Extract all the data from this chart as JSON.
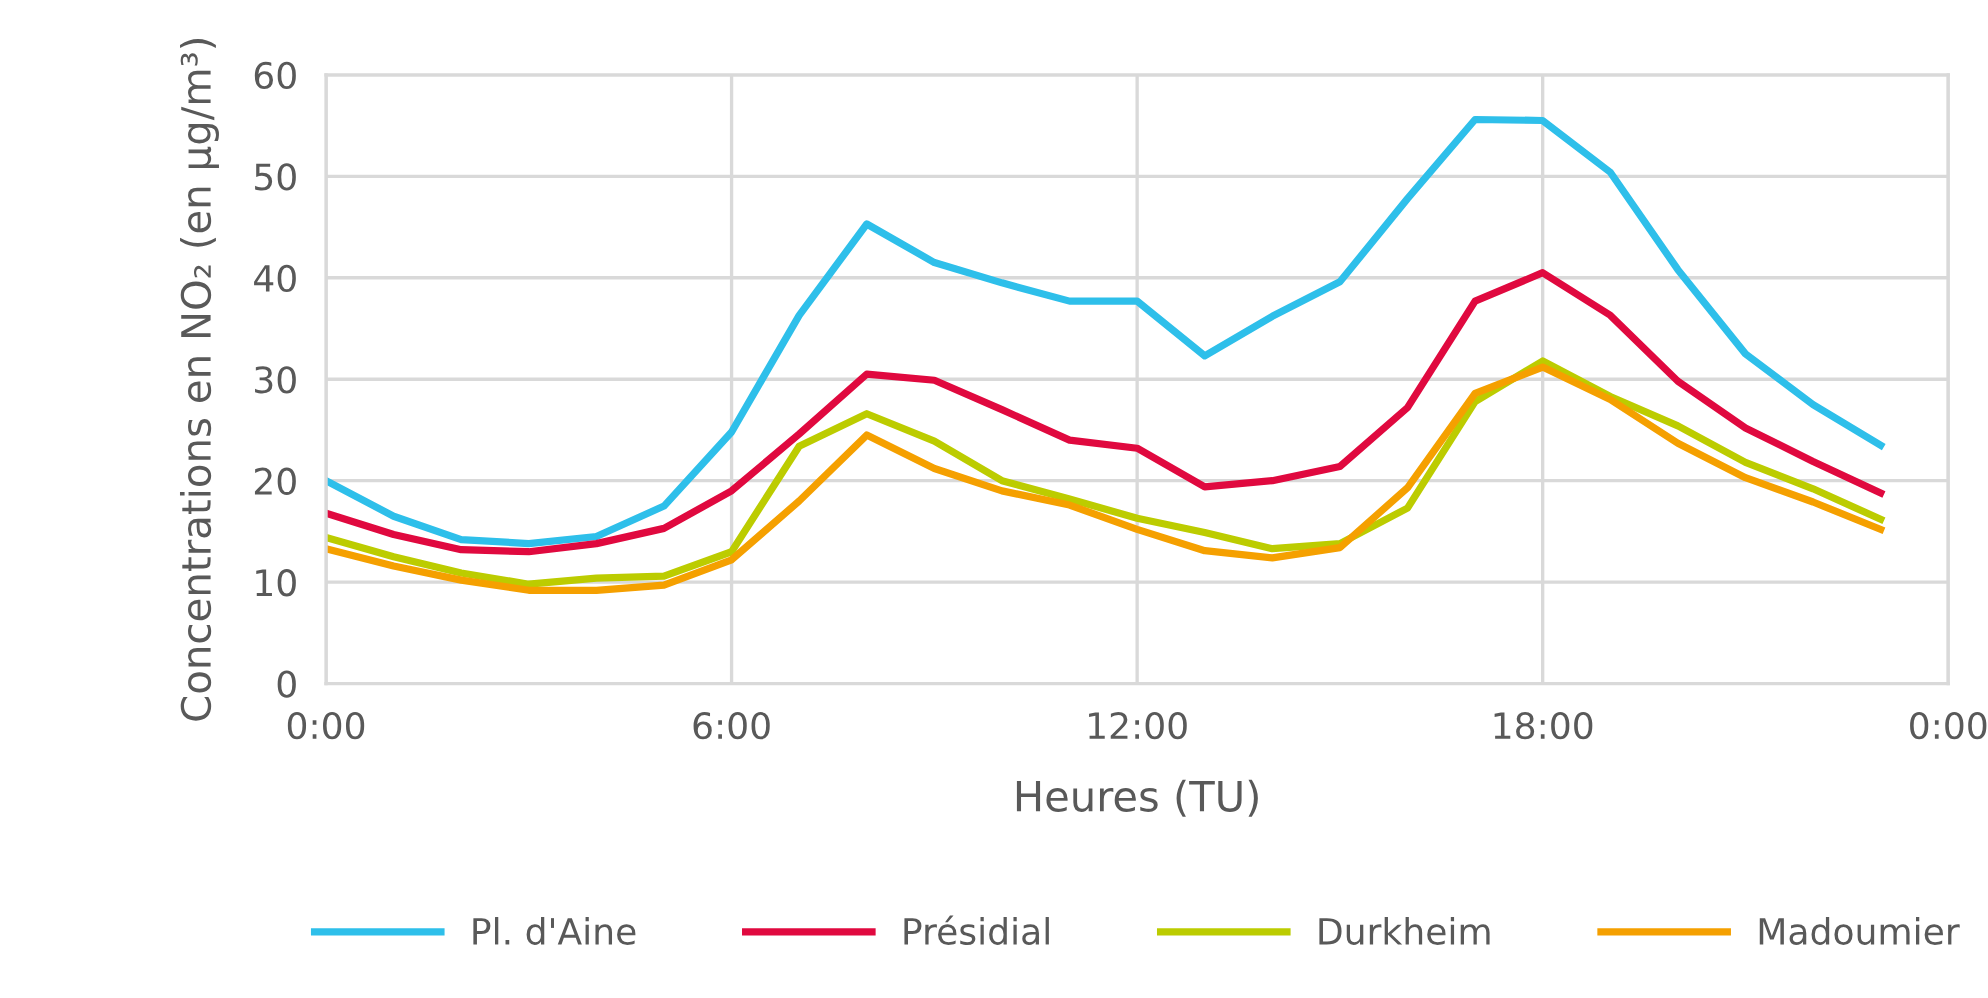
{
  "chart_data": {
    "type": "line",
    "xlabel": "Heures (TU)",
    "ylabel": "Concentrations en NO₂ (en µg/m³)",
    "x": [
      0,
      1,
      2,
      3,
      4,
      5,
      6,
      7,
      8,
      9,
      10,
      11,
      12,
      13,
      14,
      15,
      16,
      17,
      18,
      19,
      20,
      21,
      22,
      23
    ],
    "series": [
      {
        "name": "Pl. d'Aine",
        "color": "#2ebfea",
        "values": [
          20,
          16.5,
          14.2,
          13.8,
          14.5,
          17.5,
          24.8,
          36.3,
          45.3,
          41.5,
          39.5,
          37.7,
          37.7,
          32.3,
          36.2,
          39.6,
          47.8,
          55.6,
          55.5,
          50.4,
          40.8,
          32.5,
          27.5,
          23.5
        ]
      },
      {
        "name": "Présidial",
        "color": "#e0093f",
        "values": [
          16.8,
          14.7,
          13.2,
          13,
          13.8,
          15.3,
          19,
          24.6,
          30.5,
          29.9,
          27,
          24,
          23.2,
          19.4,
          20,
          21.4,
          27.2,
          37.7,
          40.5,
          36.3,
          29.8,
          25.2,
          21.9,
          18.8
        ]
      },
      {
        "name": "Durkheim",
        "color": "#bccc00",
        "values": [
          14.4,
          12.5,
          10.9,
          9.8,
          10.4,
          10.6,
          13,
          23.4,
          26.6,
          23.9,
          20,
          18.2,
          16.3,
          14.9,
          13.3,
          13.8,
          17.3,
          27.8,
          31.8,
          28.3,
          25.4,
          21.8,
          19.2,
          16.2
        ]
      },
      {
        "name": "Madoumier",
        "color": "#f5a000",
        "values": [
          13.3,
          11.6,
          10.2,
          9.2,
          9.2,
          9.7,
          12.2,
          18,
          24.5,
          21.2,
          19,
          17.6,
          15.2,
          13.1,
          12.4,
          13.4,
          19.3,
          28.6,
          31.2,
          28,
          23.7,
          20.3,
          17.9,
          15.2
        ]
      }
    ],
    "xlim": [
      0,
      24
    ],
    "xticks": [
      {
        "value": 0,
        "label": "0:00"
      },
      {
        "value": 6,
        "label": "6:00"
      },
      {
        "value": 12,
        "label": "12:00"
      },
      {
        "value": 18,
        "label": "18:00"
      },
      {
        "value": 24,
        "label": "0:00"
      }
    ],
    "ylim": [
      0,
      60
    ],
    "yticks": [
      0,
      10,
      20,
      30,
      40,
      50,
      60
    ],
    "grid": true,
    "legend": "bottom",
    "marker": "none",
    "line_style": "solid"
  }
}
